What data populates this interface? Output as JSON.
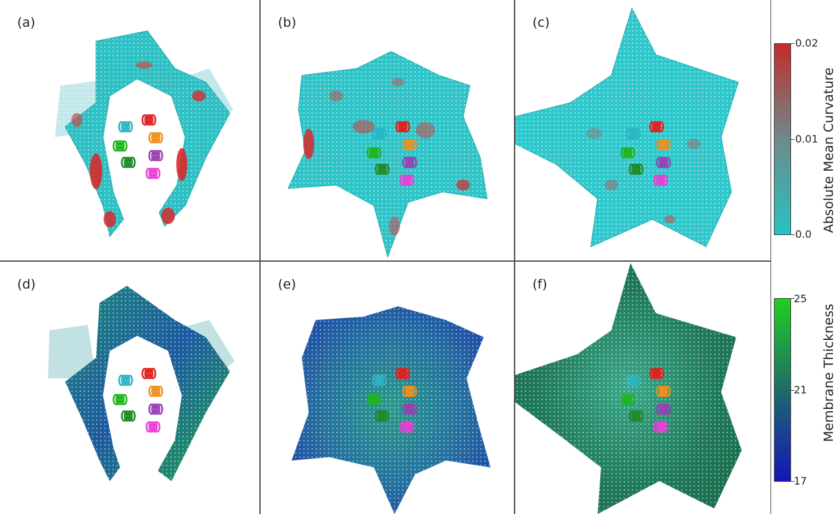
{
  "panels": [
    {
      "label": "(a)"
    },
    {
      "label": "(b)"
    },
    {
      "label": "(c)"
    },
    {
      "label": "(d)"
    },
    {
      "label": "(e)"
    },
    {
      "label": "(f)"
    }
  ],
  "colorbars": {
    "curvature": {
      "title": "Absolute Mean Curvature",
      "ticks": [
        "0.02",
        "0.01",
        "0.0"
      ],
      "colors": [
        "#c42b2b",
        "#6e8a8a",
        "#27c2c2"
      ]
    },
    "thickness": {
      "title": "Membrane Thickness",
      "ticks": [
        "25",
        "21",
        "17"
      ],
      "colors": [
        "#1fcf1f",
        "#1f6a6a",
        "#1515b8"
      ]
    }
  },
  "helix_colors": [
    "#2bb5c4",
    "#e21f1f",
    "#1fb51f",
    "#f0901e",
    "#1f8a2a",
    "#9b3fb5",
    "#ea3fd6"
  ]
}
